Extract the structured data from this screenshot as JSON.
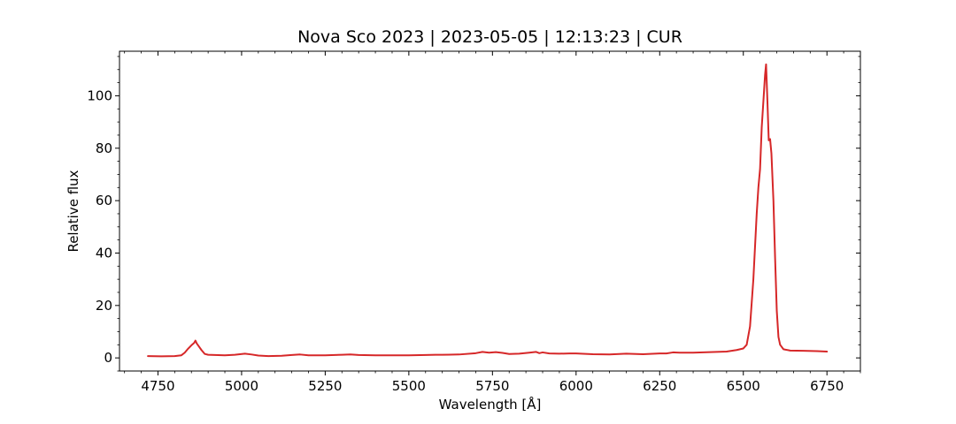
{
  "chart_data": {
    "type": "line",
    "title": "Nova Sco 2023 | 2023-05-05 | 12:13:23 | CUR",
    "xlabel": "Wavelength [Å]",
    "ylabel": "Relative flux",
    "xlim": [
      4635,
      6850
    ],
    "ylim": [
      -5,
      117
    ],
    "xticks": [
      4750,
      5000,
      5250,
      5500,
      5750,
      6000,
      6250,
      6500,
      6750
    ],
    "yticks": [
      0,
      20,
      40,
      60,
      80,
      100
    ],
    "grid": false,
    "series": [
      {
        "color": "#d62728",
        "x": [
          4720,
          4760,
          4800,
          4820,
          4830,
          4840,
          4850,
          4858,
          4862,
          4866,
          4870,
          4880,
          4890,
          4900,
          4920,
          4950,
          4980,
          5010,
          5030,
          5050,
          5080,
          5120,
          5150,
          5175,
          5200,
          5250,
          5300,
          5325,
          5350,
          5400,
          5450,
          5500,
          5550,
          5580,
          5600,
          5650,
          5700,
          5720,
          5740,
          5760,
          5780,
          5800,
          5830,
          5860,
          5880,
          5890,
          5900,
          5920,
          5950,
          5980,
          6000,
          6050,
          6100,
          6150,
          6200,
          6250,
          6270,
          6290,
          6310,
          6350,
          6400,
          6450,
          6480,
          6500,
          6510,
          6520,
          6530,
          6540,
          6545,
          6550,
          6555,
          6560,
          6565,
          6568,
          6572,
          6576,
          6580,
          6584,
          6590,
          6595,
          6600,
          6605,
          6610,
          6620,
          6640,
          6680,
          6720,
          6750
        ],
        "y": [
          0.7,
          0.6,
          0.7,
          1.0,
          2.0,
          3.5,
          4.8,
          5.7,
          6.6,
          5.5,
          4.8,
          3.0,
          1.5,
          1.2,
          1.1,
          1.0,
          1.2,
          1.6,
          1.3,
          0.9,
          0.7,
          0.8,
          1.1,
          1.3,
          1.0,
          1.0,
          1.2,
          1.3,
          1.1,
          1.0,
          1.0,
          1.0,
          1.1,
          1.2,
          1.2,
          1.3,
          1.8,
          2.3,
          2.0,
          2.2,
          1.9,
          1.5,
          1.6,
          2.0,
          2.3,
          1.8,
          2.1,
          1.7,
          1.6,
          1.7,
          1.7,
          1.4,
          1.3,
          1.6,
          1.4,
          1.7,
          1.7,
          2.1,
          2.0,
          2.0,
          2.2,
          2.4,
          3.0,
          3.6,
          5.0,
          12.0,
          30.0,
          55.0,
          65.0,
          72.0,
          88.0,
          98.0,
          108.0,
          112.0,
          98.0,
          83.0,
          83.5,
          78.0,
          60.0,
          38.0,
          18.0,
          8.0,
          5.0,
          3.3,
          2.8,
          2.7,
          2.6,
          2.4
        ]
      }
    ]
  }
}
